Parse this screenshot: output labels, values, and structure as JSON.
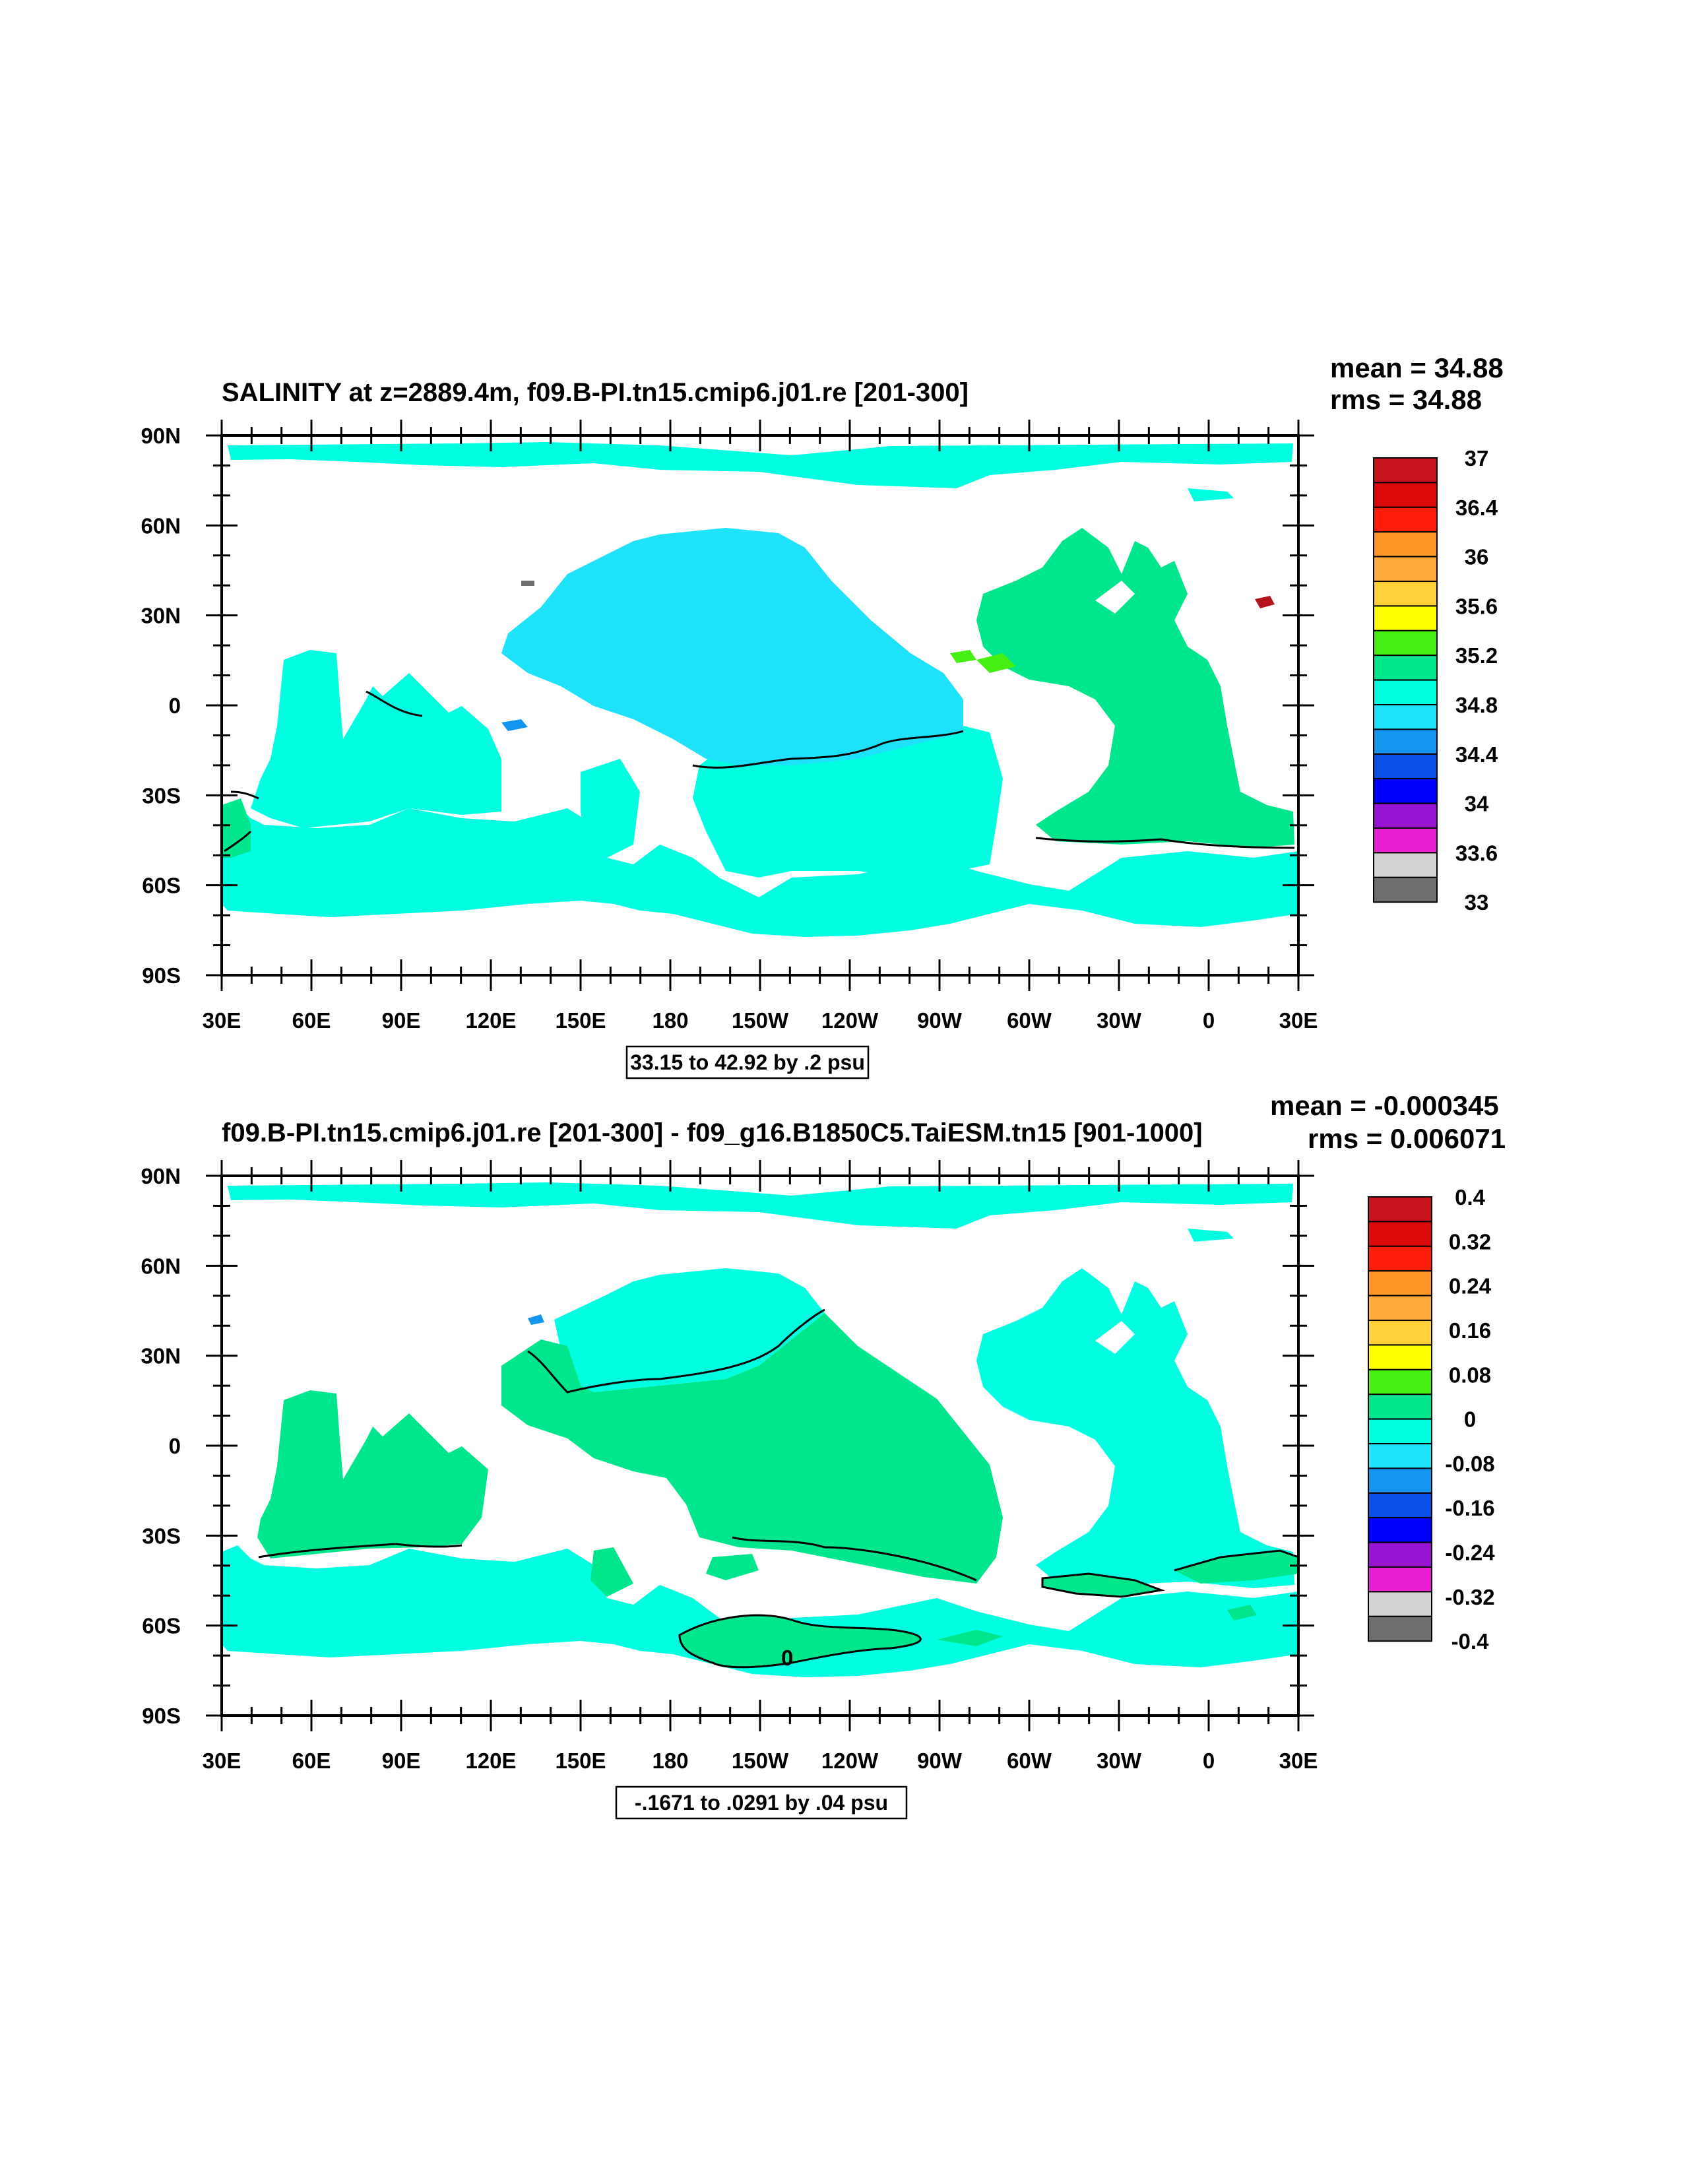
{
  "colors": {
    "palette": [
      "#6e6e6e",
      "#d2d2d2",
      "#e81ed2",
      "#9614d2",
      "#0000ff",
      "#0a50e6",
      "#1496f0",
      "#1ee1fa",
      "#00ffe1",
      "#00e68c",
      "#46f014",
      "#ffff00",
      "#ffd23c",
      "#ffaa3c",
      "#ff9628",
      "#ff5a1e",
      "#ff1e0a",
      "#dc0a0a",
      "#c8141e"
    ],
    "cyan": "#1ee1fa",
    "aquamarine": "#00ffe1",
    "green": "#00e68c",
    "lime": "#46f014",
    "darkred": "#b4141e",
    "land": "#ffffff"
  },
  "panels": [
    {
      "title": "SALINITY at z=2889.4m, f09.B-PI.tn15.cmip6.j01.re [201-300]",
      "mean": "mean = 34.88",
      "rms": "rms = 34.88",
      "info": "33.15 to 42.92 by .2 psu",
      "colorbar_labels": [
        "37",
        "36.4",
        "36",
        "35.6",
        "35.2",
        "34.8",
        "34.4",
        "34",
        "33.6",
        "33"
      ]
    },
    {
      "title": "f09.B-PI.tn15.cmip6.j01.re [201-300] - f09_g16.B1850C5.TaiESM.tn15 [901-1000]",
      "mean": "mean = -0.000345",
      "rms": "rms = 0.006071",
      "info": "-.1671 to .0291 by .04 psu",
      "colorbar_labels": [
        "0.4",
        "0.32",
        "0.24",
        "0.16",
        "0.08",
        "0",
        "-0.08",
        "-0.16",
        "-0.24",
        "-0.32",
        "-0.4"
      ],
      "contour_label": "0"
    }
  ],
  "axes": {
    "lat_labels": [
      "90N",
      "60N",
      "30N",
      "0",
      "30S",
      "60S",
      "90S"
    ],
    "lon_labels": [
      "30E",
      "60E",
      "90E",
      "120E",
      "150E",
      "180",
      "150W",
      "120W",
      "90W",
      "60W",
      "30W",
      "0",
      "30E"
    ]
  }
}
